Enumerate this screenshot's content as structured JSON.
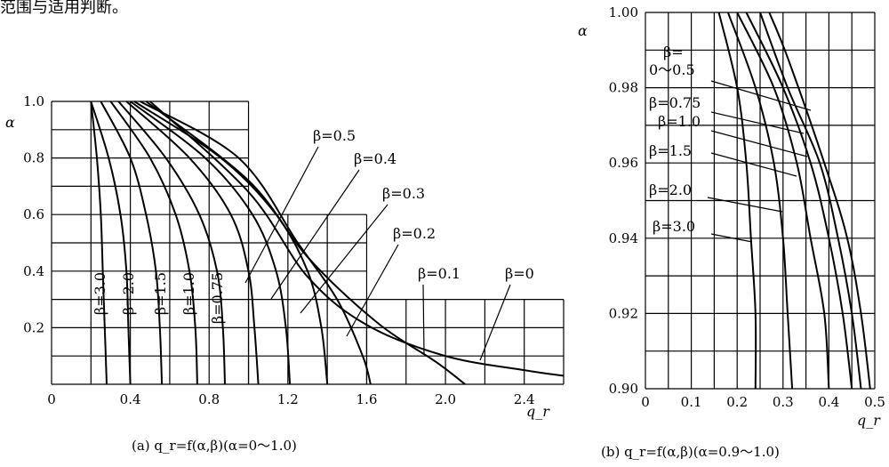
{
  "header_fragment": "范围与适用判断。",
  "chart_data": [
    {
      "type": "line",
      "caption": "(a) q_r=f(α,β)(α=0～1.0)",
      "xlabel": "q_r",
      "ylabel": "α",
      "xlim": [
        0,
        2.6
      ],
      "ylim": [
        0,
        1.0
      ],
      "x_ticks": [
        "0",
        "0.4",
        "0.8",
        "1.2",
        "1.6",
        "2.0",
        "2.4"
      ],
      "y_ticks": [
        "0.2",
        "0.4",
        "0.6",
        "0.8",
        "1.0"
      ],
      "grid": true,
      "series": [
        {
          "name": "β=3.0",
          "points": [
            [
              0.2,
              1.0
            ],
            [
              0.23,
              0.8
            ],
            [
              0.25,
              0.6
            ],
            [
              0.26,
              0.4
            ],
            [
              0.27,
              0.2
            ],
            [
              0.28,
              0.0
            ]
          ]
        },
        {
          "name": "β=2.0",
          "points": [
            [
              0.2,
              1.0
            ],
            [
              0.29,
              0.8
            ],
            [
              0.35,
              0.6
            ],
            [
              0.38,
              0.4
            ],
            [
              0.39,
              0.2
            ],
            [
              0.4,
              0.0
            ]
          ]
        },
        {
          "name": "β=1.5",
          "points": [
            [
              0.25,
              1.0
            ],
            [
              0.4,
              0.8
            ],
            [
              0.48,
              0.6
            ],
            [
              0.53,
              0.4
            ],
            [
              0.55,
              0.2
            ],
            [
              0.56,
              0.0
            ]
          ]
        },
        {
          "name": "β=1.0",
          "points": [
            [
              0.3,
              1.0
            ],
            [
              0.5,
              0.8
            ],
            [
              0.63,
              0.6
            ],
            [
              0.7,
              0.4
            ],
            [
              0.73,
              0.2
            ],
            [
              0.74,
              0.0
            ]
          ]
        },
        {
          "name": "β=0.75",
          "points": [
            [
              0.34,
              1.0
            ],
            [
              0.58,
              0.8
            ],
            [
              0.75,
              0.6
            ],
            [
              0.84,
              0.4
            ],
            [
              0.87,
              0.2
            ],
            [
              0.88,
              0.0
            ]
          ]
        },
        {
          "name": "β=0.5",
          "points": [
            [
              0.38,
              1.0
            ],
            [
              0.7,
              0.8
            ],
            [
              0.91,
              0.6
            ],
            [
              1.0,
              0.4
            ],
            [
              1.03,
              0.2
            ],
            [
              1.05,
              0.0
            ]
          ]
        },
        {
          "name": "β=0.4",
          "points": [
            [
              0.4,
              1.0
            ],
            [
              0.78,
              0.8
            ],
            [
              1.02,
              0.6
            ],
            [
              1.14,
              0.4
            ],
            [
              1.19,
              0.2
            ],
            [
              1.21,
              0.0
            ]
          ]
        },
        {
          "name": "β=0.3",
          "points": [
            [
              0.42,
              1.0
            ],
            [
              0.86,
              0.8
            ],
            [
              1.14,
              0.6
            ],
            [
              1.3,
              0.4
            ],
            [
              1.37,
              0.2
            ],
            [
              1.4,
              0.0
            ]
          ]
        },
        {
          "name": "β=0.2",
          "points": [
            [
              0.45,
              1.0
            ],
            [
              0.95,
              0.8
            ],
            [
              1.25,
              0.5
            ],
            [
              1.45,
              0.3
            ],
            [
              1.58,
              0.1
            ],
            [
              1.62,
              0.0
            ]
          ]
        },
        {
          "name": "β=0.1",
          "points": [
            [
              0.48,
              1.0
            ],
            [
              1.0,
              0.72
            ],
            [
              1.3,
              0.45
            ],
            [
              1.65,
              0.22
            ],
            [
              1.95,
              0.08
            ],
            [
              2.1,
              0.0
            ]
          ]
        },
        {
          "name": "β=0",
          "points": [
            [
              0.5,
              1.0
            ],
            [
              1.0,
              0.68
            ],
            [
              1.3,
              0.38
            ],
            [
              1.6,
              0.21
            ],
            [
              2.0,
              0.1
            ],
            [
              2.4,
              0.05
            ],
            [
              2.6,
              0.03
            ]
          ]
        }
      ]
    },
    {
      "type": "line",
      "caption": "(b) q_r=f(α,β)(α=0.9～1.0)",
      "xlabel": "q_r",
      "ylabel": "α",
      "xlim": [
        0,
        0.5
      ],
      "ylim": [
        0.9,
        1.0
      ],
      "x_ticks": [
        "0",
        "0.1",
        "0.2",
        "0.3",
        "0.4",
        "0.5"
      ],
      "y_ticks": [
        "0.90",
        "0.92",
        "0.94",
        "0.96",
        "0.98",
        "1.00"
      ],
      "grid": true,
      "labels": [
        "β=",
        "0～0.5",
        "β=0.75",
        "β=1.0",
        "β=1.5",
        "β=2.0",
        "β=3.0"
      ],
      "series": [
        {
          "name": "β=3.0",
          "points": [
            [
              0.16,
              1.0
            ],
            [
              0.2,
              0.98
            ],
            [
              0.22,
              0.96
            ],
            [
              0.23,
              0.94
            ],
            [
              0.24,
              0.92
            ],
            [
              0.24,
              0.9
            ]
          ]
        },
        {
          "name": "β=2.0",
          "points": [
            [
              0.18,
              1.0
            ],
            [
              0.24,
              0.98
            ],
            [
              0.28,
              0.96
            ],
            [
              0.3,
              0.94
            ],
            [
              0.31,
              0.92
            ],
            [
              0.32,
              0.9
            ]
          ]
        },
        {
          "name": "β=1.5",
          "points": [
            [
              0.2,
              1.0
            ],
            [
              0.28,
              0.98
            ],
            [
              0.33,
              0.96
            ],
            [
              0.36,
              0.94
            ],
            [
              0.39,
              0.92
            ],
            [
              0.4,
              0.9
            ]
          ]
        },
        {
          "name": "β=1.0",
          "points": [
            [
              0.22,
              1.0
            ],
            [
              0.3,
              0.98
            ],
            [
              0.36,
              0.96
            ],
            [
              0.4,
              0.94
            ],
            [
              0.43,
              0.92
            ],
            [
              0.45,
              0.9
            ]
          ]
        },
        {
          "name": "β=0.75",
          "points": [
            [
              0.25,
              1.0
            ],
            [
              0.31,
              0.98
            ],
            [
              0.38,
              0.96
            ],
            [
              0.42,
              0.94
            ],
            [
              0.45,
              0.92
            ],
            [
              0.47,
              0.9
            ]
          ]
        },
        {
          "name": "β=0～0.5",
          "points": [
            [
              0.27,
              1.0
            ],
            [
              0.31,
              0.988
            ],
            [
              0.39,
              0.96
            ],
            [
              0.44,
              0.94
            ],
            [
              0.47,
              0.92
            ],
            [
              0.49,
              0.9
            ]
          ]
        }
      ]
    }
  ]
}
